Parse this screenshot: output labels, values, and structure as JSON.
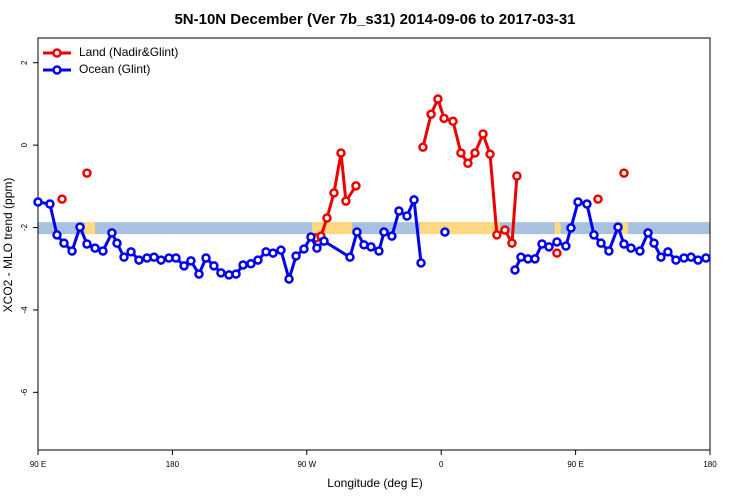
{
  "chart_data": {
    "type": "line",
    "title": "5N-10N December (Ver 7b_s31)   2014-09-06 to 2017-03-31",
    "xlabel": "Longitude (deg E)",
    "ylabel": "XCO2 - MLO trend (ppm)",
    "xlim": [
      90,
      540
    ],
    "ylim": [
      -7.4,
      2.6
    ],
    "xticks": [
      {
        "value": 90,
        "label": "90 E"
      },
      {
        "value": 180,
        "label": "180"
      },
      {
        "value": 270,
        "label": "90 W"
      },
      {
        "value": 360,
        "label": "0"
      },
      {
        "value": 450,
        "label": "90 E"
      },
      {
        "value": 540,
        "label": "180"
      }
    ],
    "yticks": [
      -6,
      -4,
      -2,
      0,
      2
    ],
    "band": {
      "ylim": [
        -2.16,
        -1.87
      ],
      "color": "#a9c1e0"
    },
    "regions": {
      "color": "#ffd97f",
      "xranges": [
        [
          121.5,
          128.2
        ],
        [
          273.5,
          300.3
        ],
        [
          345.8,
          399.4
        ],
        [
          436,
          440
        ],
        [
          481,
          485
        ]
      ]
    },
    "legend": "top-left",
    "series": [
      {
        "name": "Land (Nadir&Glint)",
        "color": "#ee0000",
        "x": [
          106.1,
          null,
          122.8,
          null,
          276.1,
          279.5,
          283.5,
          288.2,
          292.9,
          296.2,
          302.9,
          null,
          347.8,
          353.2,
          357.8,
          361.9,
          367.9,
          373.2,
          377.9,
          382.6,
          388.0,
          392.7,
          397.3,
          402.7,
          407.4,
          410.7,
          null,
          437.5,
          null,
          465.0,
          null,
          482.4
        ],
        "values": [
          -1.31,
          null,
          -0.68,
          null,
          -2.25,
          -2.21,
          -1.77,
          -1.16,
          -0.19,
          -1.36,
          -0.99,
          null,
          -0.05,
          0.75,
          1.12,
          0.65,
          0.58,
          -0.19,
          -0.44,
          -0.19,
          0.27,
          -0.22,
          -2.18,
          -2.06,
          -2.38,
          -0.75,
          null,
          -2.62,
          null,
          -1.31,
          null,
          -0.68
        ]
      },
      {
        "name": "Ocean (Glint)",
        "color": "#0000ee",
        "x": [
          90,
          98.0,
          102.7,
          107.4,
          112.8,
          118.1,
          122.8,
          128.2,
          133.5,
          139.5,
          142.9,
          147.6,
          152.3,
          157.6,
          163.0,
          167.7,
          172.4,
          177.7,
          182.4,
          187.8,
          192.4,
          197.8,
          202.5,
          207.8,
          212.5,
          217.9,
          222.6,
          227.3,
          232.6,
          237.3,
          242.7,
          247.4,
          252.7,
          258.1,
          262.8,
          268.1,
          272.8,
          276.8,
          281.5,
          298.9,
          303.6,
          308.3,
          313.0,
          318.3,
          321.7,
          327.0,
          331.7,
          337.1,
          341.8,
          346.5,
          null,
          362.5,
          null,
          409.4,
          413.4,
          418.1,
          422.8,
          427.5,
          432.2,
          437.5,
          443.5,
          446.9,
          451.6,
          457.6,
          462.3,
          467.0,
          472.3,
          478.4,
          482.4,
          487.1,
          493.1,
          498.5,
          502.5,
          507.2,
          511.8,
          517.2,
          522.6,
          527.3,
          532.0,
          537.3
        ],
        "values": [
          -1.38,
          -1.43,
          -2.18,
          -2.38,
          -2.57,
          -1.99,
          -2.4,
          -2.5,
          -2.57,
          -2.13,
          -2.38,
          -2.72,
          -2.59,
          -2.79,
          -2.74,
          -2.72,
          -2.79,
          -2.74,
          -2.74,
          -2.93,
          -2.81,
          -3.13,
          -2.74,
          -2.93,
          -3.1,
          -3.15,
          -3.13,
          -2.91,
          -2.88,
          -2.79,
          -2.59,
          -2.62,
          -2.55,
          -3.25,
          -2.69,
          -2.52,
          -2.23,
          -2.5,
          -2.33,
          -2.72,
          -2.11,
          -2.42,
          -2.47,
          -2.57,
          -2.11,
          -2.21,
          -1.6,
          -1.72,
          -1.33,
          -2.86,
          null,
          -2.11,
          null,
          -3.03,
          -2.72,
          -2.76,
          -2.76,
          -2.4,
          -2.47,
          -2.35,
          -2.45,
          -2.01,
          -1.38,
          -1.43,
          -2.18,
          -2.38,
          -2.57,
          -1.99,
          -2.4,
          -2.5,
          -2.57,
          -2.13,
          -2.38,
          -2.72,
          -2.59,
          -2.79,
          -2.74,
          -2.72,
          -2.79,
          -2.74
        ]
      }
    ]
  }
}
